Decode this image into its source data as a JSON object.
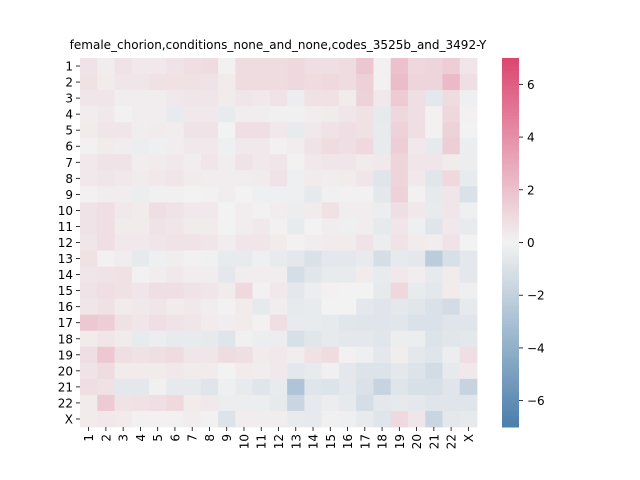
{
  "chart_data": {
    "type": "heatmap",
    "title": "female_chorion,conditions_none_and_none,codes_3525b_and_3492-Y",
    "xlabel": "",
    "ylabel": "",
    "row_labels": [
      "1",
      "2",
      "3",
      "4",
      "5",
      "6",
      "7",
      "8",
      "9",
      "10",
      "11",
      "12",
      "13",
      "14",
      "15",
      "16",
      "17",
      "18",
      "19",
      "20",
      "21",
      "22",
      "X"
    ],
    "col_labels": [
      "1",
      "2",
      "3",
      "4",
      "5",
      "6",
      "7",
      "8",
      "9",
      "10",
      "11",
      "12",
      "13",
      "14",
      "15",
      "16",
      "17",
      "18",
      "19",
      "20",
      "21",
      "22",
      "X"
    ],
    "colorbar": {
      "vmin": -7,
      "vmax": 7,
      "ticks": [
        -6,
        -4,
        -2,
        0,
        2,
        4,
        6
      ],
      "tick_labels": [
        "−6",
        "−4",
        "−2",
        "0",
        "2",
        "4",
        "6"
      ],
      "low_color": "#4a7eab",
      "mid_color": "#f2f2f2",
      "high_color": "#dc4670"
    },
    "values": [
      [
        0.6,
        0.2,
        0.6,
        0.4,
        0.4,
        0.6,
        0.8,
        0.9,
        0.1,
        0.9,
        0.9,
        0.9,
        1.0,
        0.8,
        0.8,
        0.9,
        1.8,
        0.1,
        2.0,
        1.1,
        1.2,
        1.5,
        0.5
      ],
      [
        0.7,
        0.3,
        0.5,
        0.5,
        0.7,
        0.7,
        0.7,
        0.6,
        0.3,
        0.9,
        0.9,
        0.9,
        1.0,
        0.9,
        1.0,
        0.9,
        1.4,
        0.1,
        2.2,
        1.2,
        1.2,
        2.3,
        0.8
      ],
      [
        0.5,
        0.5,
        0.2,
        0.2,
        0.2,
        0.4,
        0.5,
        0.5,
        0.3,
        0.5,
        0.4,
        0.6,
        -0.3,
        0.7,
        0.7,
        0.3,
        1.3,
        0.4,
        1.6,
        0.8,
        -0.6,
        0.9,
        -0.2
      ],
      [
        0.2,
        0.4,
        0.1,
        0.2,
        0.2,
        -0.4,
        0.4,
        0.4,
        -0.4,
        0.2,
        0.2,
        -0.1,
        -0.1,
        0.2,
        0.3,
        0.5,
        0.7,
        -0.5,
        1.1,
        0.8,
        0.1,
        1.1,
        0.1
      ],
      [
        0.3,
        0.5,
        0.5,
        0.2,
        0.3,
        0.2,
        0.6,
        0.6,
        0.0,
        0.8,
        0.8,
        0.4,
        -0.4,
        0.4,
        0.6,
        0.8,
        0.7,
        -0.4,
        1.3,
        0.8,
        0.1,
        1.3,
        0.0
      ],
      [
        0.1,
        0.3,
        0.2,
        -0.3,
        -0.2,
        0.2,
        0.4,
        0.4,
        -0.2,
        0.4,
        0.4,
        0.1,
        0.2,
        0.6,
        0.9,
        0.8,
        1.0,
        -0.4,
        1.5,
        0.4,
        -0.5,
        1.5,
        -0.3
      ],
      [
        0.4,
        0.6,
        0.6,
        0.2,
        0.3,
        0.4,
        0.2,
        0.5,
        0.2,
        0.6,
        0.4,
        0.5,
        0.1,
        0.4,
        0.5,
        0.5,
        0.3,
        0.4,
        1.2,
        0.5,
        0.5,
        0.3,
        -0.3
      ],
      [
        0.4,
        0.5,
        0.4,
        0.3,
        0.4,
        0.5,
        0.3,
        0.2,
        0.2,
        0.2,
        0.3,
        0.6,
        -0.2,
        0.3,
        0.2,
        0.3,
        0.5,
        -0.8,
        1.2,
        0.4,
        -0.7,
        1.0,
        -0.4
      ],
      [
        0.1,
        0.2,
        0.2,
        -0.3,
        -0.1,
        -0.1,
        0.0,
        0.1,
        0.2,
        0.0,
        -0.2,
        -0.2,
        -0.2,
        -0.5,
        -0.1,
        0.1,
        0.1,
        -0.6,
        1.3,
        0.1,
        -0.5,
        0.5,
        -1.0
      ],
      [
        0.6,
        0.8,
        0.4,
        0.3,
        0.8,
        0.6,
        0.4,
        0.4,
        0.0,
        0.2,
        0.1,
        0.2,
        -0.3,
        0.3,
        0.7,
        0.2,
        0.2,
        -0.3,
        0.8,
        0.4,
        -0.4,
        0.5,
        -0.2
      ],
      [
        0.6,
        0.8,
        0.3,
        0.3,
        0.6,
        0.5,
        0.3,
        0.3,
        0.0,
        0.2,
        0.4,
        0.1,
        -0.4,
        0.0,
        0.2,
        -0.2,
        0.2,
        -0.5,
        0.5,
        -0.2,
        -0.8,
        0.4,
        -0.4
      ],
      [
        0.5,
        0.8,
        0.4,
        0.4,
        0.5,
        0.6,
        0.6,
        0.5,
        0.2,
        0.5,
        0.5,
        0.3,
        0.1,
        0.2,
        0.3,
        0.3,
        0.6,
        -0.3,
        0.6,
        0.3,
        0.2,
        0.6,
        0.0
      ],
      [
        0.7,
        0.1,
        0.2,
        -0.5,
        -0.2,
        0.2,
        0.1,
        -0.1,
        -0.4,
        -0.4,
        -0.2,
        -0.4,
        -0.6,
        -1.0,
        -0.6,
        -0.6,
        -0.4,
        -1.2,
        -0.5,
        -0.6,
        -2.3,
        -1.1,
        -0.6
      ],
      [
        0.5,
        0.6,
        0.7,
        0.1,
        0.2,
        0.4,
        0.2,
        0.2,
        -0.6,
        0.2,
        0.2,
        0.2,
        -1.2,
        -0.7,
        -0.4,
        -0.4,
        0.3,
        -0.4,
        0.4,
        0.2,
        -0.5,
        0.3,
        -0.6
      ],
      [
        0.6,
        0.8,
        0.7,
        0.5,
        0.8,
        0.8,
        0.6,
        0.5,
        0.3,
        1.0,
        0.1,
        0.4,
        -0.6,
        -0.3,
        0.1,
        0.0,
        0.0,
        -0.5,
        1.1,
        -0.4,
        -0.6,
        0.3,
        -0.2
      ],
      [
        0.5,
        0.7,
        0.3,
        0.4,
        0.5,
        0.3,
        0.4,
        0.2,
        0.1,
        0.3,
        -0.5,
        0.2,
        -0.5,
        -0.4,
        0.0,
        0.0,
        -0.6,
        -0.8,
        -0.6,
        -0.7,
        -1.0,
        -1.3,
        -0.5
      ],
      [
        1.7,
        1.5,
        0.7,
        0.5,
        0.8,
        0.6,
        0.5,
        0.3,
        0.2,
        0.3,
        0.1,
        0.8,
        -0.4,
        -0.4,
        -0.5,
        -0.7,
        -0.8,
        -0.8,
        -0.7,
        -1.0,
        -1.0,
        -0.8,
        -0.8
      ],
      [
        0.3,
        0.5,
        0.3,
        -0.4,
        -0.3,
        -0.4,
        -0.4,
        -0.5,
        -0.8,
        -0.1,
        -0.3,
        -0.3,
        -1.1,
        -0.7,
        -0.5,
        -0.6,
        -0.6,
        -0.7,
        -0.3,
        -0.3,
        -0.9,
        -0.7,
        -0.6
      ],
      [
        0.8,
        1.7,
        0.8,
        0.7,
        0.8,
        0.9,
        0.5,
        0.5,
        0.9,
        0.8,
        0.3,
        0.4,
        0.2,
        0.7,
        0.9,
        0.1,
        -0.2,
        -0.6,
        0.2,
        -0.6,
        -0.8,
        -0.3,
        0.8
      ],
      [
        0.6,
        0.9,
        0.3,
        0.3,
        0.3,
        0.4,
        0.3,
        0.3,
        0.0,
        0.3,
        0.2,
        0.4,
        -0.6,
        -0.4,
        -0.1,
        -0.6,
        -0.9,
        -0.9,
        -0.6,
        -0.9,
        -1.3,
        -0.5,
        0.4
      ],
      [
        0.8,
        0.7,
        -0.6,
        -0.6,
        -0.1,
        -0.5,
        -0.5,
        -0.8,
        -0.2,
        -0.4,
        -0.8,
        -0.4,
        -2.8,
        -0.8,
        -0.9,
        -0.6,
        -1.0,
        -1.8,
        -0.8,
        -1.1,
        -1.1,
        -0.8,
        -1.8
      ],
      [
        0.3,
        1.6,
        0.6,
        0.7,
        0.8,
        1.0,
        0.3,
        0.4,
        -0.3,
        -0.3,
        -0.3,
        -0.5,
        -1.7,
        -0.5,
        -0.3,
        -0.5,
        -1.2,
        -0.6,
        -0.5,
        -0.6,
        -0.8,
        -0.8,
        -0.8
      ],
      [
        0.3,
        0.4,
        0.3,
        0.1,
        0.1,
        0.1,
        0.2,
        0.1,
        -0.9,
        0.2,
        0.2,
        0.2,
        -0.4,
        -0.5,
        -0.1,
        -0.2,
        -0.4,
        -0.8,
        1.0,
        0.5,
        -1.7,
        -0.6,
        -0.5
      ]
    ]
  }
}
